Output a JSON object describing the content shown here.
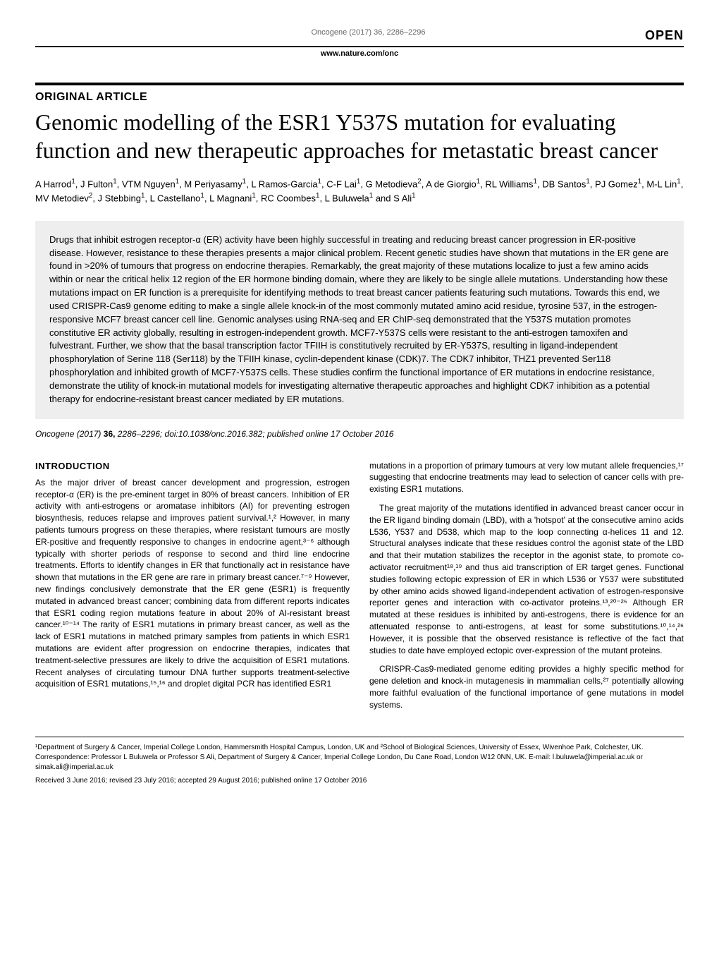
{
  "header": {
    "journal_ref": "Oncogene (2017) 36, 2286–2296",
    "open_label": "OPEN",
    "url": "www.nature.com/onc"
  },
  "article": {
    "type_label": "ORIGINAL ARTICLE",
    "title": "Genomic modelling of the ESR1 Y537S mutation for evaluating function and new therapeutic approaches for metastatic breast cancer",
    "authors_html": "A Harrod<sup>1</sup>, J Fulton<sup>1</sup>, VTM Nguyen<sup>1</sup>, M Periyasamy<sup>1</sup>, L Ramos-Garcia<sup>1</sup>, C-F Lai<sup>1</sup>, G Metodieva<sup>2</sup>, A de Giorgio<sup>1</sup>, RL Williams<sup>1</sup>, DB Santos<sup>1</sup>, PJ Gomez<sup>1</sup>, M-L Lin<sup>1</sup>, MV Metodiev<sup>2</sup>, J Stebbing<sup>1</sup>, L Castellano<sup>1</sup>, L Magnani<sup>1</sup>, RC Coombes<sup>1</sup>, L Buluwela<sup>1</sup> and S Ali<sup>1</sup>",
    "abstract": "Drugs that inhibit estrogen receptor-α (ER) activity have been highly successful in treating and reducing breast cancer progression in ER-positive disease. However, resistance to these therapies presents a major clinical problem. Recent genetic studies have shown that mutations in the ER gene are found in >20% of tumours that progress on endocrine therapies. Remarkably, the great majority of these mutations localize to just a few amino acids within or near the critical helix 12 region of the ER hormone binding domain, where they are likely to be single allele mutations. Understanding how these mutations impact on ER function is a prerequisite for identifying methods to treat breast cancer patients featuring such mutations. Towards this end, we used CRISPR-Cas9 genome editing to make a single allele knock-in of the most commonly mutated amino acid residue, tyrosine 537, in the estrogen-responsive MCF7 breast cancer cell line. Genomic analyses using RNA-seq and ER ChIP-seq demonstrated that the Y537S mutation promotes constitutive ER activity globally, resulting in estrogen-independent growth. MCF7-Y537S cells were resistant to the anti-estrogen tamoxifen and fulvestrant. Further, we show that the basal transcription factor TFIIH is constitutively recruited by ER-Y537S, resulting in ligand-independent phosphorylation of Serine 118 (Ser118) by the TFIIH kinase, cyclin-dependent kinase (CDK)7. The CDK7 inhibitor, THZ1 prevented Ser118 phosphorylation and inhibited growth of MCF7-Y537S cells. These studies confirm the functional importance of ER mutations in endocrine resistance, demonstrate the utility of knock-in mutational models for investigating alternative therapeutic approaches and highlight CDK7 inhibition as a potential therapy for endocrine-resistant breast cancer mediated by ER mutations.",
    "citation_journal": "Oncogene",
    "citation_year": "(2017)",
    "citation_vol": "36,",
    "citation_pages": "2286–2296; doi:10.1038/onc.2016.382; published online 17 October 2016"
  },
  "intro": {
    "heading": "INTRODUCTION",
    "p1": "As the major driver of breast cancer development and progression, estrogen receptor-α (ER) is the pre-eminent target in 80% of breast cancers. Inhibition of ER activity with anti-estrogens or aromatase inhibitors (AI) for preventing estrogen biosynthesis, reduces relapse and improves patient survival.¹,² However, in many patients tumours progress on these therapies, where resistant tumours are mostly ER-positive and frequently responsive to changes in endocrine agent,³⁻⁶ although typically with shorter periods of response to second and third line endocrine treatments. Efforts to identify changes in ER that functionally act in resistance have shown that mutations in the ER gene are rare in primary breast cancer.⁷⁻⁹ However, new findings conclusively demonstrate that the ER gene (ESR1) is frequently mutated in advanced breast cancer; combining data from different reports indicates that ESR1 coding region mutations feature in about 20% of AI-resistant breast cancer.¹⁰⁻¹⁴ The rarity of ESR1 mutations in primary breast cancer, as well as the lack of ESR1 mutations in matched primary samples from patients in which ESR1 mutations are evident after progression on endocrine therapies, indicates that treatment-selective pressures are likely to drive the acquisition of ESR1 mutations. Recent analyses of circulating tumour DNA further supports treatment-selective acquisition of ESR1 mutations,¹⁵,¹⁶ and droplet digital PCR has identified ESR1",
    "p2": "mutations in a proportion of primary tumours at very low mutant allele frequencies,¹⁷ suggesting that endocrine treatments may lead to selection of cancer cells with pre-existing ESR1 mutations.",
    "p3": "The great majority of the mutations identified in advanced breast cancer occur in the ER ligand binding domain (LBD), with a 'hotspot' at the consecutive amino acids L536, Y537 and D538, which map to the loop connecting α-helices 11 and 12. Structural analyses indicate that these residues control the agonist state of the LBD and that their mutation stabilizes the receptor in the agonist state, to promote co-activator recruitment¹⁸,¹⁹ and thus aid transcription of ER target genes. Functional studies following ectopic expression of ER in which L536 or Y537 were substituted by other amino acids showed ligand-independent activation of estrogen-responsive reporter genes and interaction with co-activator proteins.¹³,²⁰⁻²⁵ Although ER mutated at these residues is inhibited by anti-estrogens, there is evidence for an attenuated response to anti-estrogens, at least for some substitutions.¹⁰,¹⁴,²⁶ However, it is possible that the observed resistance is reflective of the fact that studies to date have employed ectopic over-expression of the mutant proteins.",
    "p4": "CRISPR-Cas9-mediated genome editing provides a highly specific method for gene deletion and knock-in mutagenesis in mammalian cells,²⁷ potentially allowing more faithful evaluation of the functional importance of gene mutations in model systems."
  },
  "footer": {
    "affiliations": "¹Department of Surgery & Cancer, Imperial College London, Hammersmith Hospital Campus, London, UK and ²School of Biological Sciences, University of Essex, Wivenhoe Park, Colchester, UK. Correspondence: Professor L Buluwela or Professor S Ali, Department of Surgery & Cancer, Imperial College London, Du Cane Road, London W12 0NN, UK. E-mail: l.buluwela@imperial.ac.uk or simak.ali@imperial.ac.uk",
    "received": "Received 3 June 2016; revised 23 July 2016; accepted 29 August 2016; published online 17 October 2016"
  }
}
